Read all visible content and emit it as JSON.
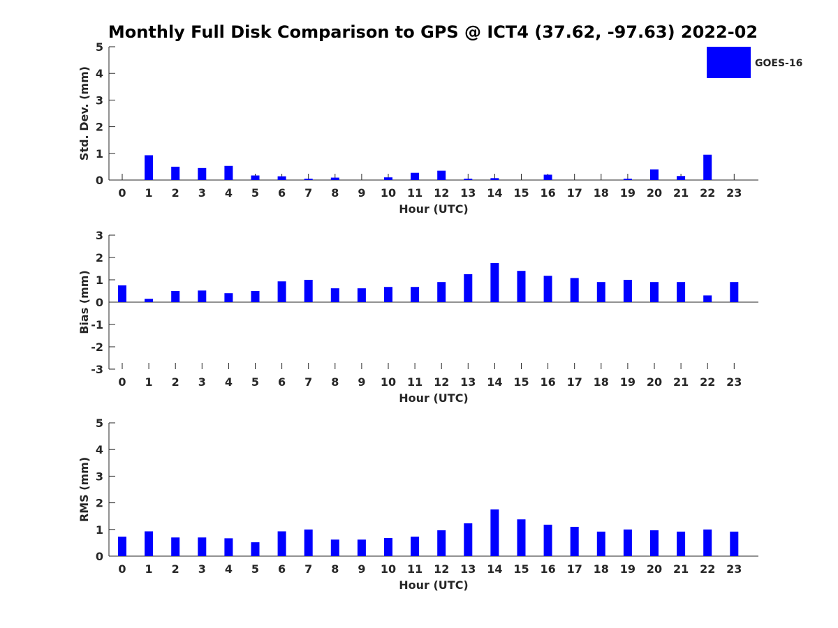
{
  "figure": {
    "title": "Monthly Full Disk Comparison to GPS @ ICT4 (37.62, -97.63) 2022-02",
    "legend": {
      "label": "GOES-16",
      "placement": "top-right"
    }
  },
  "chart_data": [
    {
      "type": "bar",
      "ylabel": "Std. Dev. (mm)",
      "xlabel": "Hour (UTC)",
      "ylim": [
        0,
        5
      ],
      "yticks": [
        "0",
        "1",
        "2",
        "3",
        "4",
        "5"
      ],
      "categories": [
        "0",
        "1",
        "2",
        "3",
        "4",
        "5",
        "6",
        "7",
        "8",
        "9",
        "10",
        "11",
        "12",
        "13",
        "14",
        "15",
        "16",
        "17",
        "18",
        "19",
        "20",
        "21",
        "22",
        "23"
      ],
      "series": [
        {
          "name": "GOES-16",
          "color": "#0000ff",
          "values": [
            0,
            0.93,
            0.5,
            0.45,
            0.53,
            0.17,
            0.14,
            0.05,
            0.09,
            0,
            0.1,
            0.27,
            0.35,
            0.05,
            0.07,
            0,
            0.2,
            0,
            0,
            0.05,
            0.4,
            0.15,
            0.95,
            0
          ]
        }
      ],
      "grid": false
    },
    {
      "type": "bar",
      "ylabel": "Bias (mm)",
      "xlabel": "Hour (UTC)",
      "ylim": [
        -3,
        3
      ],
      "yticks": [
        "-3",
        "-2",
        "-1",
        "0",
        "1",
        "2",
        "3"
      ],
      "categories": [
        "0",
        "1",
        "2",
        "3",
        "4",
        "5",
        "6",
        "7",
        "8",
        "9",
        "10",
        "11",
        "12",
        "13",
        "14",
        "15",
        "16",
        "17",
        "18",
        "19",
        "20",
        "21",
        "22",
        "23"
      ],
      "series": [
        {
          "name": "GOES-16",
          "color": "#0000ff",
          "values": [
            0.75,
            0.15,
            0.5,
            0.52,
            0.4,
            0.5,
            0.93,
            1.0,
            0.62,
            0.62,
            0.68,
            0.68,
            0.9,
            1.25,
            1.75,
            1.4,
            1.18,
            1.08,
            0.9,
            1.0,
            0.9,
            0.9,
            0.3,
            0.9
          ]
        }
      ],
      "grid": false
    },
    {
      "type": "bar",
      "ylabel": "RMS (mm)",
      "xlabel": "Hour (UTC)",
      "ylim": [
        0,
        5
      ],
      "yticks": [
        "0",
        "1",
        "2",
        "3",
        "4",
        "5"
      ],
      "categories": [
        "0",
        "1",
        "2",
        "3",
        "4",
        "5",
        "6",
        "7",
        "8",
        "9",
        "10",
        "11",
        "12",
        "13",
        "14",
        "15",
        "16",
        "17",
        "18",
        "19",
        "20",
        "21",
        "22",
        "23"
      ],
      "series": [
        {
          "name": "GOES-16",
          "color": "#0000ff",
          "values": [
            0.73,
            0.93,
            0.7,
            0.7,
            0.67,
            0.52,
            0.93,
            1.0,
            0.62,
            0.62,
            0.68,
            0.73,
            0.97,
            1.23,
            1.75,
            1.38,
            1.18,
            1.1,
            0.92,
            1.0,
            0.97,
            0.92,
            1.0,
            0.92
          ]
        }
      ],
      "grid": false
    }
  ]
}
